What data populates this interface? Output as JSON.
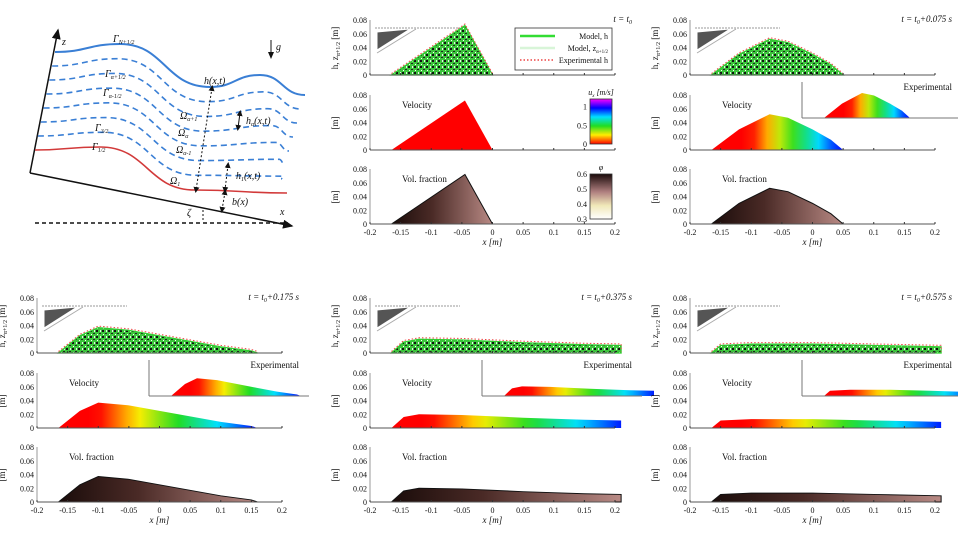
{
  "schematic": {
    "z_label": "z",
    "x_label": "x",
    "gravity_label": "g",
    "gamma_top": "Γ",
    "gamma_top_sub": "N+1/2",
    "gamma_a_plus": "Γ",
    "gamma_a_plus_sub": "α+1/2",
    "gamma_a_minus": "Γ",
    "gamma_a_minus_sub": "α-1/2",
    "gamma_3_2": "Γ",
    "gamma_3_2_sub": "3/2",
    "gamma_bottom": "Γ",
    "gamma_bottom_sub": "1/2",
    "omega_a_plus": "Ω",
    "omega_a_plus_sub": "α+1",
    "omega_a": "Ω",
    "omega_a_sub": "α",
    "omega_a_minus": "Ω",
    "omega_a_minus_sub": "α-1",
    "omega_1": "Ω",
    "omega_1_sub": "1",
    "h_label": "h(x,t)",
    "h_alpha_label": "h",
    "h_alpha_sub": "α",
    "h_alpha_rest": "(x,t)",
    "h_1_label": "h",
    "h_1_sub": "1",
    "h_1_rest": "(x,t)",
    "b_label": "b(x)",
    "zeta_label": "ζ",
    "top_color": "#3a7fd5",
    "bottom_color": "#d23a3a"
  },
  "axes": {
    "x_label": "x [m]",
    "x_ticks": [
      -0.2,
      -0.15,
      -0.1,
      -0.05,
      0,
      0.05,
      0.1,
      0.15,
      0.2
    ],
    "y_ticks": [
      0,
      0.02,
      0.04,
      0.06,
      0.08
    ],
    "y_label_height": "h, z",
    "y_label_height_sub": "α+1/2",
    "y_label_height_unit": "[m]",
    "y_label_other": "[m]",
    "velocity_label": "Velocity",
    "volfrac_label": "Vol. fraction",
    "experimental_label": "Experimental"
  },
  "legend": {
    "items": [
      {
        "label": "Model, h",
        "color": "#33dd33",
        "style": "solid"
      },
      {
        "label": "Model, z",
        "sub": "α+1/2",
        "color": "#d8f5d8",
        "style": "solid"
      },
      {
        "label": "Experimental h",
        "color": "#ee4444",
        "style": "dotted"
      }
    ]
  },
  "colorbars": {
    "velocity": {
      "label": "u",
      "sub": "x",
      "unit": " [m/s]",
      "ticks": [
        "1",
        "0.5",
        "0"
      ],
      "range": [
        0,
        1.2
      ]
    },
    "volfrac": {
      "label": "φ",
      "ticks": [
        "0.6",
        "0.5",
        "0.4",
        "0.3"
      ],
      "range": [
        0.3,
        0.6
      ]
    }
  },
  "panels": [
    {
      "time": "t = t",
      "time_sub": "0",
      "time_rest": "",
      "legend": true,
      "colorbars": true,
      "inset": false,
      "profile": [
        [
          -0.165,
          0
        ],
        [
          -0.045,
          0.072
        ],
        [
          0,
          0
        ]
      ],
      "velocity_ramp": null
    },
    {
      "time": "t = t",
      "time_sub": "0",
      "time_rest": "+0.075 s",
      "legend": false,
      "colorbars": false,
      "inset": true,
      "profile": [
        [
          -0.165,
          0
        ],
        [
          -0.12,
          0.03
        ],
        [
          -0.07,
          0.052
        ],
        [
          -0.04,
          0.047
        ],
        [
          0,
          0.03
        ],
        [
          0.03,
          0.015
        ],
        [
          0.05,
          0
        ]
      ],
      "velocity_ramp": [
        -0.1,
        0.045
      ]
    },
    {
      "time": "t = t",
      "time_sub": "0",
      "time_rest": "+0.175 s",
      "legend": false,
      "colorbars": false,
      "inset": true,
      "profile": [
        [
          -0.165,
          0
        ],
        [
          -0.13,
          0.025
        ],
        [
          -0.1,
          0.037
        ],
        [
          -0.05,
          0.033
        ],
        [
          0,
          0.025
        ],
        [
          0.05,
          0.017
        ],
        [
          0.1,
          0.009
        ],
        [
          0.15,
          0.003
        ],
        [
          0.16,
          0
        ]
      ],
      "velocity_ramp": [
        -0.1,
        0.16
      ]
    },
    {
      "time": "t = t",
      "time_sub": "0",
      "time_rest": "+0.375 s",
      "legend": false,
      "colorbars": false,
      "inset": true,
      "profile": [
        [
          -0.165,
          0
        ],
        [
          -0.145,
          0.016
        ],
        [
          -0.12,
          0.02
        ],
        [
          -0.05,
          0.019
        ],
        [
          0.05,
          0.015
        ],
        [
          0.15,
          0.012
        ],
        [
          0.21,
          0.011
        ],
        [
          0.21,
          0
        ]
      ],
      "velocity_ramp": [
        -0.1,
        0.22
      ]
    },
    {
      "time": "t = t",
      "time_sub": "0",
      "time_rest": "+0.575 s",
      "legend": false,
      "colorbars": false,
      "inset": true,
      "profile": [
        [
          -0.165,
          0
        ],
        [
          -0.15,
          0.011
        ],
        [
          -0.1,
          0.013
        ],
        [
          0,
          0.013
        ],
        [
          0.1,
          0.011
        ],
        [
          0.21,
          0.009
        ],
        [
          0.21,
          0
        ]
      ],
      "velocity_ramp": [
        -0.1,
        0.22
      ]
    }
  ]
}
